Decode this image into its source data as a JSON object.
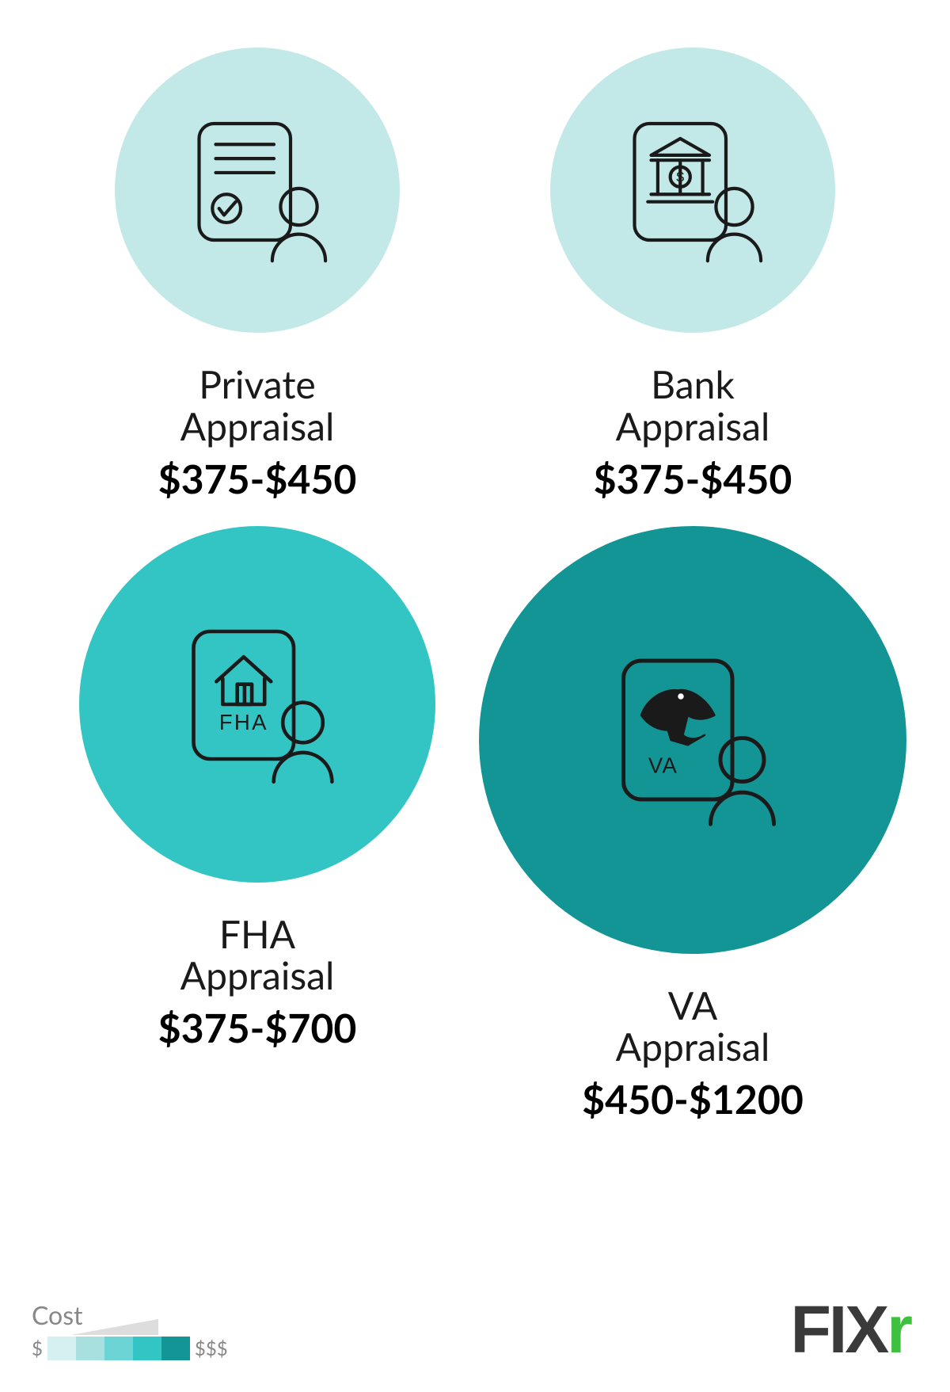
{
  "items": [
    {
      "title1": "Private",
      "title2": "Appraisal",
      "price": "$375-$450",
      "circle_color": "#c3e8e8",
      "circle_diameter": 360,
      "icon": "document"
    },
    {
      "title1": "Bank",
      "title2": "Appraisal",
      "price": "$375-$450",
      "circle_color": "#c3e8e8",
      "circle_diameter": 360,
      "icon": "bank"
    },
    {
      "title1": "FHA",
      "title2": "Appraisal",
      "price": "$375-$700",
      "circle_color": "#33c4c4",
      "circle_diameter": 450,
      "icon": "fha"
    },
    {
      "title1": "VA",
      "title2": "Appraisal",
      "price": "$450-$1200",
      "circle_color": "#139595",
      "circle_diameter": 540,
      "icon": "va"
    }
  ],
  "legend": {
    "title": "Cost",
    "left_label": "$",
    "right_label": "$$$",
    "swatches": [
      "#d4f0f0",
      "#a8e0e0",
      "#6cd4d4",
      "#33c4c4",
      "#139595"
    ],
    "wedge_color": "#dddddd"
  },
  "logo": {
    "text_dark": "FIX",
    "text_green": "r"
  },
  "style": {
    "background": "#ffffff",
    "label_fontsize": 48,
    "price_fontsize": 50,
    "icon_stroke": "#1a1a1a",
    "icon_stroke_width": 3
  }
}
